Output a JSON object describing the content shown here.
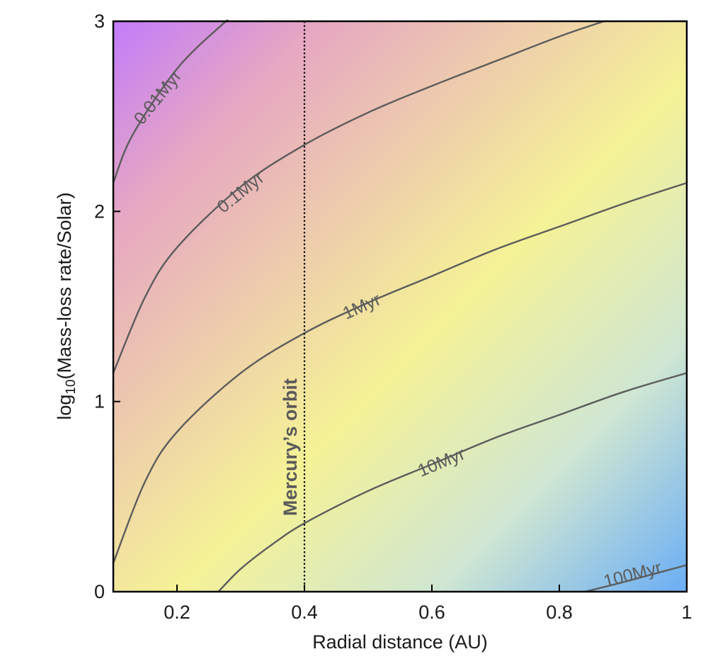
{
  "chart_data": {
    "type": "heatmap",
    "xlabel": "Radial distance (AU)",
    "ylabel_prefix": "log",
    "ylabel_sub": "10",
    "ylabel_suffix": "(Mass-loss rate/Solar)",
    "xlim": [
      0.1,
      1.0
    ],
    "ylim": [
      0,
      3
    ],
    "x_ticks": [
      0.2,
      0.4,
      0.6,
      0.8,
      1.0
    ],
    "x_tick_labels": [
      "0.2",
      "0.4",
      "0.6",
      "0.8",
      "1"
    ],
    "y_ticks": [
      0,
      1,
      2,
      3
    ],
    "y_tick_labels": [
      "0",
      "1",
      "2",
      "3"
    ],
    "grid": false,
    "colors": {
      "top_left": "#c27cfb",
      "middle": "#f5f296",
      "bottom_right": "#6aaef5",
      "contour": "#5c5c5c"
    },
    "contours": [
      {
        "label": "0.01Myr",
        "label_at": [
          0.17,
          2.6
        ],
        "points": [
          [
            0.1,
            2.15
          ],
          [
            0.13,
            2.4
          ],
          [
            0.2,
            2.75
          ],
          [
            0.27,
            2.98
          ],
          [
            0.28,
            3.0
          ]
        ]
      },
      {
        "label": "0.1Myr",
        "label_at": [
          0.3,
          2.1
        ],
        "points": [
          [
            0.1,
            1.15
          ],
          [
            0.15,
            1.55
          ],
          [
            0.2,
            1.81
          ],
          [
            0.3,
            2.13
          ],
          [
            0.4,
            2.35
          ],
          [
            0.5,
            2.52
          ],
          [
            0.6,
            2.66
          ],
          [
            0.7,
            2.79
          ],
          [
            0.8,
            2.92
          ],
          [
            0.87,
            3.0
          ]
        ]
      },
      {
        "label": "1Myr",
        "label_at": [
          0.49,
          1.5
        ],
        "points": [
          [
            0.1,
            0.15
          ],
          [
            0.15,
            0.58
          ],
          [
            0.2,
            0.84
          ],
          [
            0.3,
            1.15
          ],
          [
            0.4,
            1.36
          ],
          [
            0.5,
            1.52
          ],
          [
            0.6,
            1.66
          ],
          [
            0.7,
            1.8
          ],
          [
            0.8,
            1.92
          ],
          [
            0.9,
            2.04
          ],
          [
            1.0,
            2.15
          ]
        ]
      },
      {
        "label": "10Myr",
        "label_at": [
          0.615,
          0.68
        ],
        "points": [
          [
            0.265,
            0.0
          ],
          [
            0.3,
            0.12
          ],
          [
            0.35,
            0.25
          ],
          [
            0.4,
            0.36
          ],
          [
            0.5,
            0.53
          ],
          [
            0.6,
            0.67
          ],
          [
            0.7,
            0.81
          ],
          [
            0.8,
            0.93
          ],
          [
            0.9,
            1.05
          ],
          [
            1.0,
            1.15
          ]
        ]
      },
      {
        "label": "100Myr",
        "label_at": [
          0.915,
          0.09
        ],
        "points": [
          [
            0.84,
            0.0
          ],
          [
            0.9,
            0.05
          ],
          [
            1.0,
            0.14
          ]
        ]
      }
    ],
    "vertical_line": {
      "x": 0.4,
      "label": "Mercury’s orbit",
      "style": "dotted"
    }
  }
}
